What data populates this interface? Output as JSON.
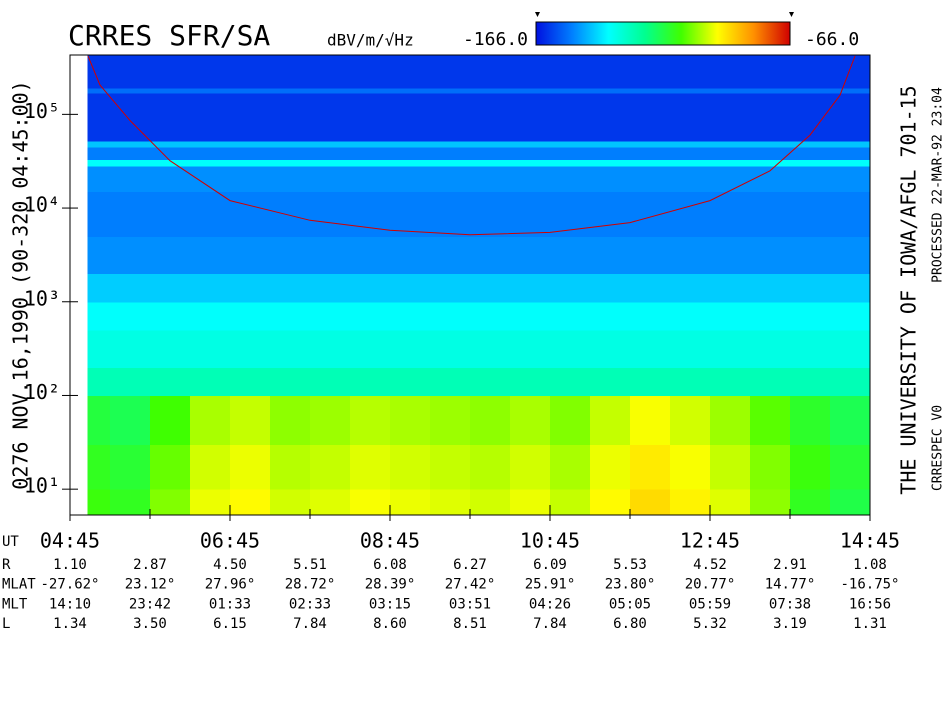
{
  "chart_data": {
    "type": "spectrogram",
    "title": "CRRES SFR/SA",
    "ylabel": "0276 NOV.16,1990 (90-320 04:45:00)",
    "annotations": [
      "THE UNIVERSITY OF IOWA/AFGL 701-15",
      "PROCESSED 22-MAR-92 23:04",
      "CRRESPEC V0"
    ],
    "colorbar": {
      "label": "dBV/m/√Hz",
      "ticks": [
        {
          "value": -166,
          "label": "-166.0"
        },
        {
          "value": -66,
          "label": "-66.0"
        }
      ],
      "colormap": [
        "#0010e0",
        "#0080ff",
        "#00ffff",
        "#00ff90",
        "#40ff00",
        "#ffff00",
        "#ff9000",
        "#d00000"
      ]
    },
    "ylog": true,
    "ylim": [
      5.3,
      430000
    ],
    "yticks": [
      {
        "value": 10,
        "label": "10¹"
      },
      {
        "value": 100,
        "label": "10²"
      },
      {
        "value": 1000,
        "label": "10³"
      },
      {
        "value": 10000,
        "label": "10⁴"
      },
      {
        "value": 100000,
        "label": "10⁵"
      }
    ],
    "x_label": "UT",
    "xlim": [
      285,
      885
    ],
    "xticks": [
      {
        "value": 285,
        "label": "04:45"
      },
      {
        "value": 405,
        "label": "06:45"
      },
      {
        "value": 525,
        "label": "08:45"
      },
      {
        "value": 645,
        "label": "10:45"
      },
      {
        "value": 765,
        "label": "12:45"
      },
      {
        "value": 885,
        "label": "14:45"
      }
    ],
    "xminorticks": [
      345,
      465,
      585,
      705,
      825
    ],
    "time_edges": [
      298,
      315,
      345,
      375,
      405,
      435,
      465,
      495,
      525,
      555,
      585,
      615,
      645,
      675,
      705,
      735,
      765,
      795,
      825,
      855,
      885
    ],
    "freq_edges": [
      5.3,
      10,
      30,
      100,
      200,
      500,
      1000,
      2000,
      5000,
      15000,
      28000,
      33000,
      45000,
      52000,
      170000,
      190000,
      430000
    ],
    "z": [
      [
        -110,
        -112,
        -104,
        -96,
        -94,
        -98,
        -97,
        -95,
        -96,
        -97,
        -98,
        -96,
        -99,
        -94,
        -90,
        -93,
        -97,
        -103,
        -112,
        -116
      ],
      [
        -112,
        -114,
        -106,
        -98,
        -96,
        -100,
        -99,
        -97,
        -98,
        -99,
        -100,
        -98,
        -101,
        -96,
        -92,
        -95,
        -99,
        -104,
        -110,
        -114
      ],
      [
        -115,
        -117,
        -109,
        -101,
        -99,
        -103,
        -102,
        -100,
        -101,
        -102,
        -103,
        -101,
        -104,
        -99,
        -95,
        -98,
        -102,
        -107,
        -113,
        -117
      ],
      [
        -128,
        -128,
        -128,
        -128,
        -128,
        -128,
        -128,
        -128,
        -128,
        -128,
        -128,
        -128,
        -128,
        -128,
        -128,
        -128,
        -128,
        -128,
        -128,
        -128
      ],
      [
        -134,
        -134,
        -134,
        -134,
        -134,
        -134,
        -134,
        -134,
        -134,
        -134,
        -134,
        -134,
        -134,
        -134,
        -134,
        -134,
        -134,
        -134,
        -134,
        -134
      ],
      [
        -137,
        -137,
        -137,
        -137,
        -137,
        -137,
        -137,
        -137,
        -137,
        -137,
        -137,
        -137,
        -137,
        -137,
        -137,
        -137,
        -137,
        -137,
        -137,
        -137
      ],
      [
        -143,
        -143,
        -143,
        -143,
        -143,
        -143,
        -143,
        -143,
        -143,
        -143,
        -143,
        -143,
        -143,
        -143,
        -143,
        -143,
        -143,
        -143,
        -143,
        -143
      ],
      [
        -150,
        -150,
        -150,
        -150,
        -150,
        -150,
        -150,
        -150,
        -150,
        -150,
        -150,
        -150,
        -150,
        -150,
        -150,
        -150,
        -150,
        -150,
        -150,
        -150
      ],
      [
        -152,
        -152,
        -152,
        -152,
        -152,
        -152,
        -152,
        -152,
        -152,
        -152,
        -152,
        -152,
        -152,
        -152,
        -152,
        -152,
        -152,
        -152,
        -152,
        -152
      ],
      [
        -150,
        -150,
        -150,
        -150,
        -150,
        -150,
        -150,
        -150,
        -150,
        -150,
        -150,
        -150,
        -150,
        -150,
        -150,
        -150,
        -150,
        -150,
        -150,
        -150
      ],
      [
        -137,
        -137,
        -137,
        -137,
        -137,
        -137,
        -137,
        -137,
        -137,
        -137,
        -137,
        -137,
        -137,
        -137,
        -137,
        -137,
        -137,
        -137,
        -137,
        -137
      ],
      [
        -152,
        -152,
        -152,
        -152,
        -152,
        -152,
        -152,
        -152,
        -152,
        -152,
        -152,
        -152,
        -152,
        -152,
        -152,
        -152,
        -152,
        -152,
        -152,
        -152
      ],
      [
        -144,
        -144,
        -144,
        -144,
        -144,
        -144,
        -144,
        -144,
        -144,
        -144,
        -144,
        -144,
        -144,
        -144,
        -144,
        -144,
        -144,
        -144,
        -144,
        -144
      ],
      [
        -161,
        -161,
        -161,
        -161,
        -161,
        -161,
        -161,
        -161,
        -161,
        -161,
        -161,
        -161,
        -161,
        -161,
        -161,
        -161,
        -161,
        -161,
        -161,
        -161
      ],
      [
        -154,
        -154,
        -154,
        -154,
        -154,
        -154,
        -154,
        -154,
        -154,
        -154,
        -154,
        -154,
        -154,
        -154,
        -154,
        -154,
        -154,
        -154,
        -154,
        -154
      ],
      [
        -161,
        -161,
        -161,
        -161,
        -161,
        -161,
        -161,
        -161,
        -161,
        -161,
        -161,
        -161,
        -161,
        -161,
        -161,
        -161,
        -161,
        -161,
        -161,
        -161
      ]
    ],
    "line": {
      "color": "#d00000",
      "x": [
        298.5,
        307.5,
        330,
        360,
        405,
        465,
        525,
        585,
        645,
        705,
        765,
        810,
        840,
        862.5,
        873.75
      ],
      "y": [
        420000,
        205000,
        86000,
        32000,
        12000,
        7400,
        5800,
        5200,
        5500,
        7000,
        12000,
        25000,
        60000,
        160000,
        420000
      ]
    }
  },
  "ephemeris": {
    "rows": [
      {
        "label": "R",
        "values": [
          "1.10",
          "2.87",
          "4.50",
          "5.51",
          "6.08",
          "6.27",
          "6.09",
          "5.53",
          "4.52",
          "2.91",
          "1.08"
        ]
      },
      {
        "label": "MLAT",
        "values": [
          "-27.62°",
          "23.12°",
          "27.96°",
          "28.72°",
          "28.39°",
          "27.42°",
          "25.91°",
          "23.80°",
          "20.77°",
          "14.77°",
          "-16.75°"
        ]
      },
      {
        "label": "MLT",
        "values": [
          "14:10",
          "23:42",
          "01:33",
          "02:33",
          "03:15",
          "03:51",
          "04:26",
          "05:05",
          "05:59",
          "07:38",
          "16:56"
        ]
      },
      {
        "label": "L",
        "values": [
          "1.34",
          "3.50",
          "6.15",
          "7.84",
          "8.60",
          "8.51",
          "7.84",
          "6.80",
          "5.32",
          "3.19",
          "1.31"
        ]
      }
    ]
  }
}
